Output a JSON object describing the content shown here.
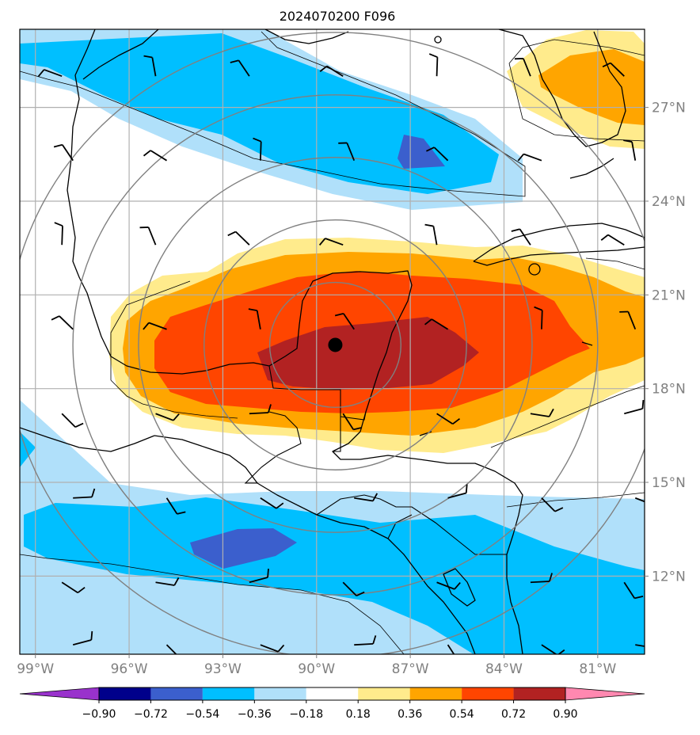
{
  "title": "2024070200 F096",
  "map": {
    "lon_range": [
      -99.5,
      -79.5
    ],
    "lat_range": [
      9.5,
      29.5
    ],
    "lon_ticks": [
      {
        "value": -99,
        "label": "99°W"
      },
      {
        "value": -96,
        "label": "96°W"
      },
      {
        "value": -93,
        "label": "93°W"
      },
      {
        "value": -90,
        "label": "90°W"
      },
      {
        "value": -87,
        "label": "87°W"
      },
      {
        "value": -84,
        "label": "84°W"
      },
      {
        "value": -81,
        "label": "81°W"
      }
    ],
    "lat_ticks": [
      {
        "value": 12,
        "label": "12°N"
      },
      {
        "value": 15,
        "label": "15°N"
      },
      {
        "value": 18,
        "label": "18°N"
      },
      {
        "value": 21,
        "label": "21°N"
      },
      {
        "value": 24,
        "label": "24°N"
      },
      {
        "value": 27,
        "label": "27°N"
      }
    ],
    "center_marker": {
      "lon": -89.4,
      "lat": 19.4,
      "color": "#000000"
    },
    "range_rings_deg": [
      2,
      4,
      6,
      8,
      10
    ],
    "ring_color": "#808080",
    "grid": true,
    "grid_color": "#b0b0b0",
    "coast_color": "#000000",
    "barb_color": "#000000"
  },
  "colorbar": {
    "tick_labels": [
      "−0.90",
      "−0.72",
      "−0.54",
      "−0.36",
      "−0.18",
      "0.18",
      "0.36",
      "0.54",
      "0.72",
      "0.90"
    ],
    "colors": [
      "#9932cc",
      "#00008b",
      "#3b5fcd",
      "#00bfff",
      "#b0e0fa",
      "#ffffff",
      "#ffeb8c",
      "#ffa500",
      "#ff4500",
      "#b22222",
      "#ff88b0"
    ]
  },
  "fields": {
    "colors": {
      "pos1": "#ffeb8c",
      "pos2": "#ffa500",
      "pos3": "#ff4500",
      "pos4": "#b22222",
      "neg1": "#b0e0fa",
      "neg2": "#00bfff",
      "neg3": "#3b5fcd"
    }
  }
}
